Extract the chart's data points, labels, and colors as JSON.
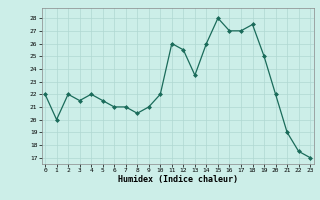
{
  "x": [
    0,
    1,
    2,
    3,
    4,
    5,
    6,
    7,
    8,
    9,
    10,
    11,
    12,
    13,
    14,
    15,
    16,
    17,
    18,
    19,
    20,
    21,
    22,
    23
  ],
  "y": [
    22,
    20,
    22,
    21.5,
    22,
    21.5,
    21,
    21,
    20.5,
    21,
    22,
    26,
    25.5,
    23.5,
    26,
    28,
    27,
    27,
    27.5,
    25,
    22,
    19,
    17.5,
    17
  ],
  "line_color": "#1a6b5a",
  "marker": "D",
  "marker_size": 2,
  "bg_color": "#cceee8",
  "grid_color": "#b0d8d2",
  "xlabel": "Humidex (Indice chaleur)",
  "ylim_min": 16.5,
  "ylim_max": 28.8,
  "xlim_min": -0.3,
  "xlim_max": 23.3,
  "yticks": [
    17,
    18,
    19,
    20,
    21,
    22,
    23,
    24,
    25,
    26,
    27,
    28
  ],
  "xticks": [
    0,
    1,
    2,
    3,
    4,
    5,
    6,
    7,
    8,
    9,
    10,
    11,
    12,
    13,
    14,
    15,
    16,
    17,
    18,
    19,
    20,
    21,
    22,
    23
  ]
}
